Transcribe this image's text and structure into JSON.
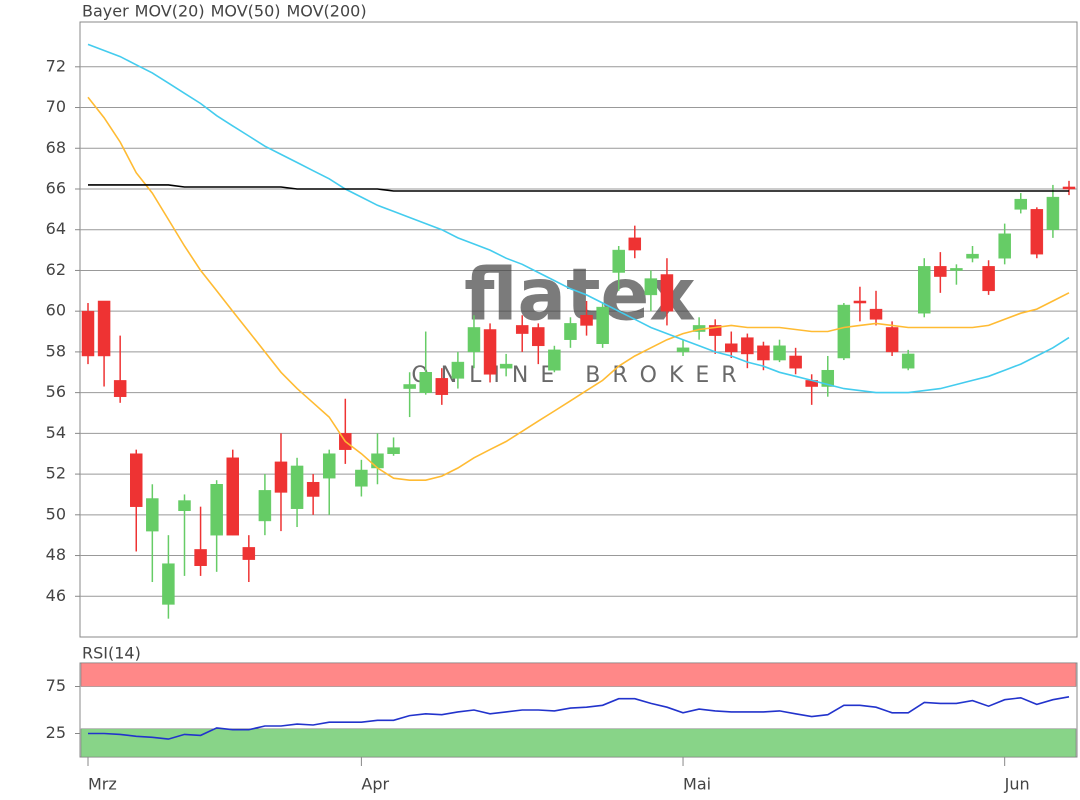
{
  "chart_data": [
    {
      "type": "candlestick",
      "watermark": {
        "brand": "flatex",
        "tagline": "ONLINE BROKER"
      },
      "ylim": [
        44,
        74.2
      ],
      "yticks": [
        46,
        48,
        50,
        52,
        54,
        56,
        58,
        60,
        62,
        64,
        66,
        68,
        70,
        72
      ],
      "grid": true,
      "up_color": "#66cc66",
      "down_color": "#ee3333",
      "series": [
        {
          "name": "Bayer",
          "color": "#ff6633",
          "open": [
            60.0,
            60.5,
            56.6,
            53.0,
            49.2,
            45.6,
            50.2,
            48.3,
            49.0,
            52.8,
            48.4,
            49.7,
            52.6,
            50.3,
            51.6,
            51.8,
            54.0,
            51.4,
            52.3,
            53.0,
            56.2,
            56.0,
            56.7,
            56.7,
            58.0,
            59.1,
            57.2,
            59.3,
            59.2,
            57.1,
            58.6,
            59.8,
            58.4,
            61.9,
            63.6,
            60.8,
            61.8,
            58.0,
            59.0,
            59.3,
            58.4,
            58.7,
            58.3,
            57.6,
            57.8,
            56.6,
            56.3,
            57.7,
            60.5,
            60.1,
            59.2,
            57.2,
            59.9,
            62.2,
            62.0,
            62.6,
            62.2,
            62.6,
            65.0,
            65.0,
            64.0,
            66.1
          ],
          "high": [
            60.4,
            60.5,
            58.8,
            53.2,
            51.5,
            49.0,
            51.0,
            50.4,
            51.7,
            53.2,
            49.0,
            52.0,
            54.0,
            52.8,
            52.0,
            53.2,
            55.7,
            52.7,
            54.0,
            53.8,
            57.0,
            59.0,
            57.2,
            58.0,
            59.8,
            59.4,
            57.9,
            59.8,
            59.4,
            58.3,
            59.7,
            60.5,
            60.4,
            63.2,
            64.2,
            62.0,
            62.6,
            58.6,
            59.7,
            59.6,
            59.0,
            58.9,
            58.5,
            58.6,
            58.2,
            56.9,
            57.8,
            60.4,
            61.2,
            61.0,
            59.5,
            58.1,
            62.6,
            62.9,
            62.3,
            63.2,
            62.5,
            64.3,
            65.8,
            65.1,
            66.2,
            66.4
          ],
          "low": [
            57.4,
            56.3,
            55.5,
            48.2,
            46.7,
            44.9,
            47.0,
            47.0,
            47.2,
            49.0,
            46.7,
            49.0,
            49.2,
            49.4,
            50.0,
            50.0,
            52.5,
            50.9,
            51.5,
            52.9,
            54.8,
            55.9,
            55.4,
            56.2,
            57.2,
            56.5,
            56.8,
            58.0,
            57.4,
            57.0,
            58.2,
            58.8,
            58.2,
            61.0,
            62.6,
            60.0,
            59.3,
            57.8,
            58.6,
            57.9,
            57.7,
            57.2,
            57.1,
            57.5,
            56.9,
            55.4,
            55.8,
            57.6,
            59.5,
            59.3,
            57.8,
            57.1,
            59.7,
            60.9,
            61.3,
            62.4,
            60.8,
            62.3,
            64.8,
            62.6,
            63.6,
            65.7
          ],
          "close": [
            57.8,
            57.8,
            55.8,
            50.4,
            50.8,
            47.6,
            50.7,
            47.5,
            51.5,
            49.0,
            47.8,
            51.2,
            51.1,
            52.4,
            50.9,
            53.0,
            53.2,
            52.2,
            53.0,
            53.3,
            56.4,
            57.0,
            55.9,
            57.5,
            59.2,
            56.9,
            57.4,
            58.9,
            58.3,
            58.1,
            59.4,
            59.3,
            60.2,
            63.0,
            63.0,
            61.6,
            60.0,
            58.2,
            59.3,
            58.8,
            58.0,
            57.9,
            57.6,
            58.3,
            57.2,
            56.3,
            57.1,
            60.3,
            60.4,
            59.6,
            58.0,
            57.9,
            62.2,
            61.7,
            62.1,
            62.8,
            61.0,
            63.8,
            65.5,
            62.8,
            65.6,
            66.0
          ]
        },
        {
          "name": "MOV(20)",
          "color": "#ffbb33",
          "values": [
            70.5,
            69.5,
            68.3,
            66.8,
            65.8,
            64.5,
            63.2,
            62.0,
            61.0,
            60.0,
            59.0,
            58.0,
            57.0,
            56.2,
            55.5,
            54.8,
            53.6,
            53.0,
            52.3,
            51.8,
            51.7,
            51.7,
            51.9,
            52.3,
            52.8,
            53.2,
            53.6,
            54.1,
            54.6,
            55.1,
            55.6,
            56.1,
            56.6,
            57.3,
            57.8,
            58.2,
            58.6,
            58.9,
            59.1,
            59.2,
            59.3,
            59.2,
            59.2,
            59.2,
            59.1,
            59.0,
            59.0,
            59.2,
            59.3,
            59.4,
            59.3,
            59.2,
            59.2,
            59.2,
            59.2,
            59.2,
            59.3,
            59.6,
            59.9,
            60.1,
            60.5,
            60.9
          ]
        },
        {
          "name": "MOV(50)",
          "color": "#44ccee",
          "values": [
            73.1,
            72.8,
            72.5,
            72.1,
            71.7,
            71.2,
            70.7,
            70.2,
            69.6,
            69.1,
            68.6,
            68.1,
            67.7,
            67.3,
            66.9,
            66.5,
            66.0,
            65.6,
            65.2,
            64.9,
            64.6,
            64.3,
            64.0,
            63.6,
            63.3,
            63.0,
            62.6,
            62.3,
            61.9,
            61.5,
            61.1,
            60.8,
            60.4,
            60.0,
            59.6,
            59.2,
            58.9,
            58.6,
            58.3,
            58.0,
            57.8,
            57.5,
            57.3,
            57.0,
            56.8,
            56.6,
            56.4,
            56.2,
            56.1,
            56.0,
            56.0,
            56.0,
            56.1,
            56.2,
            56.4,
            56.6,
            56.8,
            57.1,
            57.4,
            57.8,
            58.2,
            58.7
          ]
        },
        {
          "name": "MOV(200)",
          "color": "#000000",
          "values": [
            66.2,
            66.2,
            66.2,
            66.2,
            66.2,
            66.2,
            66.1,
            66.1,
            66.1,
            66.1,
            66.1,
            66.1,
            66.1,
            66.0,
            66.0,
            66.0,
            66.0,
            66.0,
            66.0,
            65.9,
            65.9,
            65.9,
            65.9,
            65.9,
            65.9,
            65.9,
            65.9,
            65.9,
            65.9,
            65.9,
            65.9,
            65.9,
            65.9,
            65.9,
            65.9,
            65.9,
            65.9,
            65.9,
            65.9,
            65.9,
            65.9,
            65.9,
            65.9,
            65.9,
            65.9,
            65.9,
            65.9,
            65.9,
            65.9,
            65.9,
            65.9,
            65.9,
            65.9,
            65.9,
            65.9,
            65.9,
            65.9,
            65.9,
            65.9,
            65.9,
            65.9,
            65.9
          ]
        }
      ]
    },
    {
      "type": "line",
      "categories": [
        "Mrz",
        null,
        null,
        null,
        null,
        null,
        null,
        null,
        null,
        null,
        null,
        null,
        null,
        null,
        null,
        null,
        null,
        "Apr",
        null,
        null,
        null,
        null,
        null,
        null,
        null,
        null,
        null,
        null,
        null,
        null,
        null,
        null,
        null,
        null,
        null,
        null,
        null,
        "Mai",
        null,
        null,
        null,
        null,
        null,
        null,
        null,
        null,
        null,
        null,
        null,
        null,
        null,
        null,
        null,
        null,
        null,
        null,
        null,
        "Jun",
        null,
        null,
        null,
        null
      ],
      "ylim": [
        0,
        100
      ],
      "yticks": [
        25,
        75
      ],
      "bands": [
        {
          "from": 75,
          "to": 100,
          "color": "#ff8888"
        },
        {
          "from": 0,
          "to": 30,
          "color": "#88d488"
        }
      ],
      "series": [
        {
          "name": "RSI(14)",
          "color": "#2233cc",
          "values": [
            25,
            25,
            24,
            22,
            21,
            19,
            24,
            23,
            31,
            29,
            29,
            33,
            33,
            35,
            34,
            37,
            37,
            37,
            39,
            39,
            44,
            46,
            45,
            48,
            50,
            46,
            48,
            50,
            50,
            49,
            52,
            53,
            55,
            62,
            62,
            57,
            53,
            47,
            51,
            49,
            48,
            48,
            48,
            49,
            46,
            43,
            45,
            55,
            55,
            53,
            47,
            47,
            58,
            57,
            57,
            60,
            54,
            61,
            63,
            56,
            61,
            64
          ]
        }
      ]
    }
  ]
}
